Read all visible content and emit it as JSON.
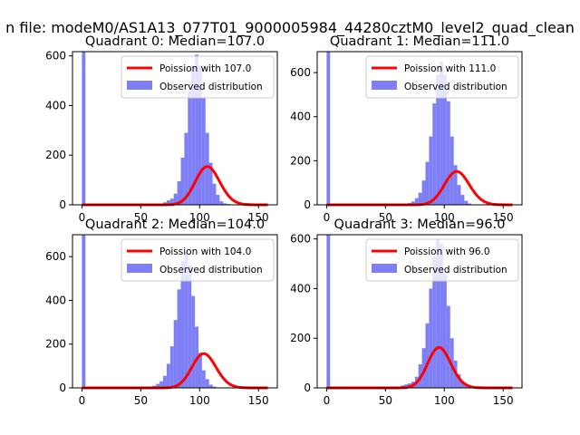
{
  "suptitle": "n file: modeM0/AS1A13_077T01_9000005984_44280cztM0_level2_quad_clean",
  "colors": {
    "poisson": "#ff0000",
    "observed": "#7f7ff5",
    "axes": "#000000",
    "background": "#ffffff"
  },
  "chart_data": [
    {
      "type": "bar",
      "title": "Quadrant 0: Median=107.0",
      "xlabel": "",
      "ylabel": "",
      "xlim": [
        -8,
        166
      ],
      "ylim": [
        0,
        617
      ],
      "xticks": [
        0,
        50,
        100,
        150
      ],
      "yticks": [
        0,
        200,
        400,
        600
      ],
      "grid": false,
      "legend_position": "top-right",
      "series": [
        {
          "name": "Poission with 107.0",
          "kind": "line",
          "lambda": 107.0,
          "scale": 4000
        },
        {
          "name": "Observed distribution",
          "kind": "histogram",
          "bin_start": 0,
          "bin_width": 3,
          "values": [
            617,
            0,
            0,
            0,
            0,
            0,
            0,
            0,
            0,
            0,
            0,
            0,
            0,
            0,
            0,
            0,
            0,
            0,
            0,
            0,
            2,
            3,
            5,
            10,
            18,
            25,
            45,
            95,
            190,
            290,
            460,
            560,
            605,
            560,
            430,
            290,
            170,
            85,
            40,
            14,
            6,
            3,
            1,
            0,
            0,
            0,
            0,
            0,
            0,
            0,
            0,
            0,
            0
          ]
        }
      ]
    },
    {
      "type": "bar",
      "title": "Quadrant 1: Median=111.0",
      "xlabel": "",
      "ylabel": "",
      "xlim": [
        -8,
        166
      ],
      "ylim": [
        0,
        695
      ],
      "xticks": [
        0,
        50,
        100,
        150
      ],
      "yticks": [
        0,
        200,
        400,
        600
      ],
      "grid": false,
      "legend_position": "top-right",
      "series": [
        {
          "name": "Poission with 111.0",
          "kind": "line",
          "lambda": 111.0,
          "scale": 4000
        },
        {
          "name": "Observed distribution",
          "kind": "histogram",
          "bin_start": 0,
          "bin_width": 3,
          "values": [
            695,
            0,
            0,
            0,
            0,
            0,
            0,
            0,
            0,
            0,
            0,
            0,
            0,
            0,
            0,
            0,
            0,
            0,
            0,
            0,
            0,
            2,
            4,
            8,
            15,
            30,
            55,
            110,
            195,
            310,
            460,
            590,
            650,
            590,
            470,
            310,
            180,
            90,
            45,
            18,
            6,
            2,
            1,
            0,
            0,
            0,
            0,
            0,
            0,
            0,
            0,
            0,
            0
          ]
        }
      ]
    },
    {
      "type": "bar",
      "title": "Quadrant 2: Median=104.0",
      "xlabel": "",
      "ylabel": "",
      "xlim": [
        -8,
        166
      ],
      "ylim": [
        0,
        700
      ],
      "xticks": [
        0,
        50,
        100,
        150
      ],
      "yticks": [
        0,
        200,
        400,
        600
      ],
      "grid": false,
      "legend_position": "top-right",
      "series": [
        {
          "name": "Poission with 104.0",
          "kind": "line",
          "lambda": 104.0,
          "scale": 4000
        },
        {
          "name": "Observed distribution",
          "kind": "histogram",
          "bin_start": 0,
          "bin_width": 3,
          "values": [
            700,
            0,
            0,
            0,
            0,
            0,
            0,
            0,
            0,
            0,
            0,
            0,
            0,
            0,
            0,
            0,
            0,
            2,
            3,
            6,
            10,
            18,
            30,
            55,
            110,
            190,
            310,
            450,
            580,
            620,
            560,
            420,
            280,
            160,
            80,
            40,
            15,
            6,
            2,
            0,
            0,
            0,
            0,
            0,
            0,
            0,
            0,
            0,
            0,
            0,
            0,
            0,
            0
          ]
        }
      ]
    },
    {
      "type": "bar",
      "title": "Quadrant 3: Median=96.0",
      "xlabel": "",
      "ylabel": "",
      "xlim": [
        -8,
        166
      ],
      "ylim": [
        0,
        617
      ],
      "xticks": [
        0,
        50,
        100,
        150
      ],
      "yticks": [
        0,
        200,
        400,
        600
      ],
      "grid": false,
      "legend_position": "top-right",
      "series": [
        {
          "name": "Poission with 96.0",
          "kind": "line",
          "lambda": 96.0,
          "scale": 4000
        },
        {
          "name": "Observed distribution",
          "kind": "histogram",
          "bin_start": 0,
          "bin_width": 3,
          "values": [
            617,
            0,
            0,
            0,
            0,
            0,
            0,
            0,
            0,
            0,
            0,
            0,
            0,
            0,
            0,
            0,
            0,
            0,
            0,
            0,
            5,
            10,
            14,
            18,
            25,
            45,
            95,
            160,
            260,
            400,
            530,
            600,
            580,
            460,
            330,
            200,
            110,
            55,
            25,
            10,
            4,
            2,
            1,
            0,
            0,
            0,
            0,
            0,
            0,
            0,
            0,
            0,
            0
          ]
        }
      ]
    }
  ]
}
